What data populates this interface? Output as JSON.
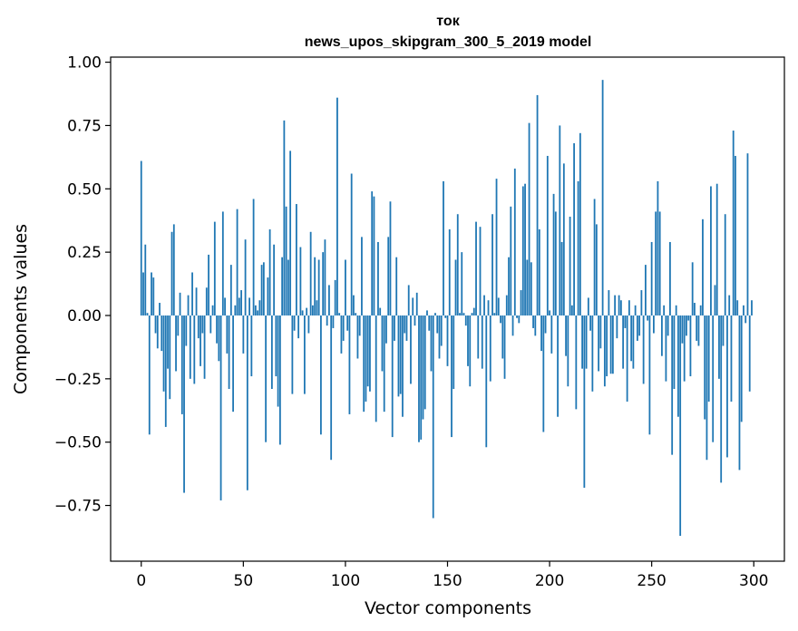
{
  "chart_data": {
    "type": "bar",
    "title": "ток",
    "subtitle": "news_upos_skipgram_300_5_2019 model",
    "xlabel": "Vector components",
    "ylabel": "Components values",
    "xlim": [
      -15,
      315
    ],
    "ylim": [
      -0.97,
      1.02
    ],
    "x_ticks": [
      0,
      50,
      100,
      150,
      200,
      250,
      300
    ],
    "x_tick_labels": [
      "0",
      "50",
      "100",
      "150",
      "200",
      "250",
      "300"
    ],
    "y_ticks": [
      1.0,
      0.75,
      0.5,
      0.25,
      0.0,
      -0.25,
      -0.5,
      -0.75
    ],
    "y_tick_labels": [
      "1.00",
      "0.75",
      "0.50",
      "0.25",
      "0.00",
      "−0.25",
      "−0.50",
      "−0.75"
    ],
    "bar_color": "#1f77b4",
    "values": [
      0.61,
      0.17,
      0.28,
      0.01,
      -0.47,
      0.17,
      0.15,
      -0.07,
      -0.13,
      0.05,
      -0.14,
      -0.3,
      -0.44,
      -0.21,
      -0.33,
      0.33,
      0.36,
      -0.22,
      -0.08,
      0.09,
      -0.39,
      -0.7,
      -0.12,
      0.08,
      -0.25,
      0.17,
      -0.27,
      0.11,
      -0.09,
      -0.2,
      -0.07,
      -0.25,
      0.11,
      0.24,
      -0.07,
      0.04,
      0.37,
      -0.11,
      -0.18,
      -0.73,
      0.41,
      0.07,
      -0.15,
      -0.29,
      0.2,
      -0.38,
      0.04,
      0.42,
      0.07,
      0.1,
      -0.15,
      0.3,
      -0.69,
      0.07,
      -0.24,
      0.46,
      0.04,
      0.02,
      0.06,
      0.2,
      0.21,
      -0.5,
      0.15,
      0.34,
      -0.29,
      0.28,
      -0.24,
      -0.36,
      -0.51,
      0.23,
      0.77,
      0.43,
      0.22,
      0.65,
      -0.31,
      -0.06,
      0.44,
      -0.09,
      0.27,
      0.02,
      -0.31,
      0.03,
      -0.07,
      0.33,
      0.04,
      0.23,
      0.06,
      0.22,
      -0.47,
      0.25,
      0.3,
      -0.04,
      0.12,
      -0.57,
      -0.05,
      0.14,
      0.86,
      0.01,
      -0.15,
      -0.1,
      0.22,
      -0.06,
      -0.39,
      0.56,
      0.08,
      0.01,
      -0.17,
      -0.08,
      0.31,
      -0.38,
      -0.34,
      -0.28,
      -0.3,
      0.49,
      0.47,
      -0.42,
      0.29,
      0.03,
      -0.22,
      -0.38,
      -0.11,
      0.31,
      0.45,
      -0.48,
      -0.1,
      0.23,
      -0.32,
      -0.31,
      -0.4,
      -0.07,
      -0.1,
      0.12,
      -0.27,
      0.07,
      -0.04,
      0.09,
      -0.5,
      -0.49,
      -0.41,
      -0.37,
      0.02,
      -0.06,
      -0.22,
      -0.8,
      0.01,
      -0.07,
      -0.17,
      -0.12,
      0.53,
      -0.01,
      -0.2,
      0.34,
      -0.48,
      -0.29,
      0.22,
      0.4,
      0.01,
      0.25,
      0.01,
      -0.04,
      -0.2,
      -0.28,
      0.01,
      0.03,
      0.37,
      -0.17,
      0.35,
      -0.21,
      0.08,
      -0.52,
      0.06,
      -0.26,
      0.4,
      0.01,
      0.54,
      0.07,
      -0.03,
      -0.17,
      -0.25,
      0.08,
      0.23,
      0.43,
      -0.08,
      0.58,
      -0.01,
      -0.03,
      0.1,
      0.51,
      0.52,
      0.22,
      0.76,
      0.21,
      -0.05,
      -0.08,
      0.87,
      0.34,
      -0.14,
      -0.46,
      -0.07,
      0.63,
      0.02,
      -0.15,
      0.48,
      0.41,
      -0.4,
      0.75,
      0.29,
      0.6,
      -0.16,
      -0.28,
      0.39,
      0.04,
      0.68,
      -0.37,
      0.53,
      0.72,
      -0.21,
      -0.68,
      -0.21,
      0.07,
      -0.06,
      -0.3,
      0.46,
      0.36,
      -0.22,
      -0.13,
      0.93,
      -0.28,
      -0.24,
      0.1,
      -0.23,
      -0.23,
      0.08,
      -0.09,
      0.08,
      0.06,
      -0.21,
      -0.05,
      -0.34,
      0.06,
      -0.18,
      -0.21,
      0.04,
      -0.1,
      -0.08,
      0.1,
      -0.27,
      0.2,
      -0.02,
      -0.47,
      0.29,
      -0.07,
      0.41,
      0.53,
      0.41,
      -0.16,
      0.04,
      -0.26,
      -0.08,
      0.29,
      -0.55,
      -0.29,
      0.04,
      -0.4,
      -0.87,
      -0.11,
      -0.26,
      -0.08,
      -0.02,
      -0.24,
      0.21,
      0.05,
      -0.1,
      -0.12,
      0.04,
      0.38,
      -0.41,
      -0.57,
      -0.34,
      0.51,
      -0.5,
      0.12,
      0.52,
      -0.25,
      -0.66,
      -0.12,
      0.4,
      -0.56,
      0.08,
      -0.34,
      0.73,
      0.63,
      0.06,
      -0.61,
      -0.42,
      0.04,
      -0.03,
      0.64,
      -0.3,
      0.06
    ]
  }
}
